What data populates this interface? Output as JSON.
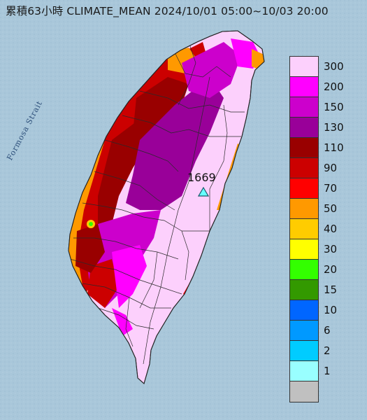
{
  "title": "累積63小時 CLIMATE_MEAN 2024/10/01 05:00~10/03 20:00",
  "sea_label": "Formosa Strait",
  "max_station": {
    "value": "1669",
    "icon": "triangle-marker-icon"
  },
  "legend": {
    "unit_labels": [
      "300",
      "200",
      "150",
      "130",
      "110",
      "90",
      "70",
      "50",
      "40",
      "30",
      "20",
      "15",
      "10",
      "6",
      "2",
      "1"
    ],
    "colors": [
      "#fcd0fc",
      "#ff00ff",
      "#cc00cc",
      "#990099",
      "#990000",
      "#cc0000",
      "#ff0000",
      "#ff9900",
      "#ffcc00",
      "#ffff00",
      "#33ff00",
      "#339900",
      "#0066ff",
      "#0099ff",
      "#00ccff",
      "#99ffff",
      "#c0c0c0"
    ]
  },
  "colors": {
    "sea": "#a9c7da",
    "land_base": "#fcd0fc"
  }
}
